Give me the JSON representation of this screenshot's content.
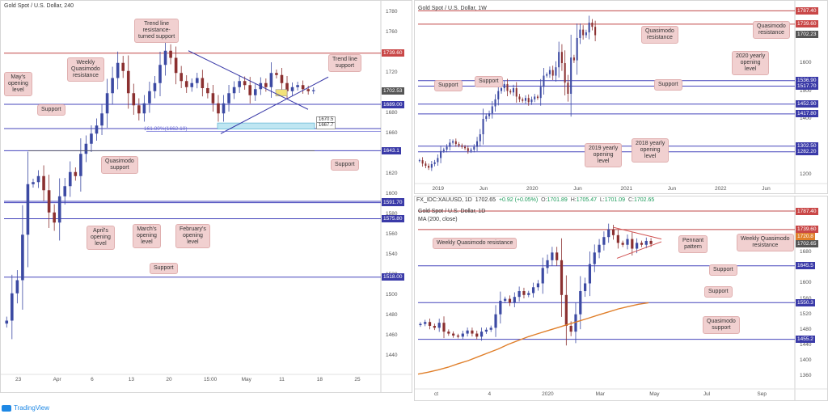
{
  "colors": {
    "candle_up": "#3c4aa3",
    "candle_down": "#8b3030",
    "level_blue": "#4444bb",
    "level_red": "#c04848",
    "annotation_bg": "#f1d0d0",
    "tag_red": "#c94747",
    "tag_blue": "#3a3aa8",
    "ma200": "#e07f2a",
    "fib": "#6b6bd6"
  },
  "footer": {
    "brand": "TradingView"
  },
  "chart_data": [
    {
      "id": "h4",
      "type": "candlestick",
      "title": "Gold Spot / U.S. Dollar, 240",
      "ylim": [
        1425,
        1785
      ],
      "yticks": [
        1440,
        1460,
        1480,
        1500,
        1520,
        1540,
        1560,
        1580,
        1600,
        1620,
        1640,
        1660,
        1680,
        1700,
        1720,
        1740,
        1760,
        1780
      ],
      "xticks": [
        "23",
        "Apr",
        "6",
        "13",
        "20",
        "15:00",
        "May",
        "11",
        "18",
        "25"
      ],
      "close_series": [
        1475,
        1502,
        1515,
        1560,
        1610,
        1612,
        1618,
        1604,
        1582,
        1572,
        1598,
        1608,
        1622,
        1618,
        1640,
        1650,
        1660,
        1668,
        1680,
        1700,
        1715,
        1730,
        1722,
        1700,
        1688,
        1680,
        1690,
        1702,
        1710,
        1728,
        1742,
        1735,
        1720,
        1712,
        1706,
        1710,
        1715,
        1705,
        1700,
        1690,
        1680,
        1690,
        1700,
        1706,
        1712,
        1708,
        1698,
        1704,
        1710,
        1706,
        1720,
        1718,
        1710,
        1702,
        1706,
        1708,
        1704,
        1702,
        1703
      ],
      "levels": [
        {
          "price": 1739.6,
          "label": "1739.60",
          "kind": "resistance"
        },
        {
          "price": 1702.53,
          "label": "1702.53",
          "kind": "current"
        },
        {
          "price": 1689.0,
          "label": "1689.00",
          "kind": "support"
        },
        {
          "price": 1665.0,
          "label": "",
          "kind": "support"
        },
        {
          "price": 1643.1,
          "label": "1643.1",
          "kind": "support"
        },
        {
          "price": 1593.0,
          "label": "1593.00",
          "kind": "support"
        },
        {
          "price": 1591.7,
          "label": "1591.70",
          "kind": "support"
        },
        {
          "price": 1575.8,
          "label": "1575.80",
          "kind": "support"
        },
        {
          "price": 1518.0,
          "label": "1518.00",
          "kind": "support"
        }
      ],
      "zone": {
        "top": 1670.5,
        "bottom": 1667.7,
        "top_label": "1670.5",
        "bottom_label": "1667.7"
      },
      "fib_label": "161.80%(1662.10)",
      "annotations": [
        {
          "text": "Trend line\nresistance-\nturned support"
        },
        {
          "text": "Weekly\nQuasimodo\nresistance"
        },
        {
          "text": "Trend line\nsupport"
        },
        {
          "text": "May's\nopening\nlevel"
        },
        {
          "text": "Support"
        },
        {
          "text": "Quasimodo\nsupport"
        },
        {
          "text": "Support"
        },
        {
          "text": "April's\nopening\nlevel"
        },
        {
          "text": "March's\nopening\nlevel"
        },
        {
          "text": "February's\nopening\nlevel"
        },
        {
          "text": "Support"
        }
      ]
    },
    {
      "id": "weekly",
      "type": "candlestick",
      "title": "Gold Spot / U.S. Dollar, 1W",
      "ylim": [
        1180,
        1800
      ],
      "yticks": [
        1200,
        1300,
        1400,
        1500,
        1600,
        1700
      ],
      "xticks": [
        "2019",
        "Jun",
        "2020",
        "Jun",
        "2021",
        "Jun",
        "2022",
        "Jun"
      ],
      "close_series": [
        1252,
        1240,
        1232,
        1225,
        1238,
        1245,
        1260,
        1285,
        1290,
        1300,
        1315,
        1320,
        1310,
        1305,
        1300,
        1295,
        1285,
        1290,
        1300,
        1320,
        1345,
        1400,
        1410,
        1420,
        1445,
        1470,
        1500,
        1510,
        1525,
        1500,
        1495,
        1510,
        1480,
        1470,
        1465,
        1475,
        1460,
        1470,
        1480,
        1475,
        1515,
        1555,
        1560,
        1575,
        1555,
        1585,
        1640,
        1600,
        1530,
        1490,
        1620,
        1610,
        1690,
        1720,
        1700,
        1710,
        1745,
        1730,
        1700
      ],
      "levels": [
        {
          "price": 1787.4,
          "label": "1787.40",
          "kind": "resistance"
        },
        {
          "price": 1739.6,
          "label": "1739.60",
          "kind": "resistance"
        },
        {
          "price": 1702.23,
          "label": "1702.23",
          "kind": "current"
        },
        {
          "price": 1536.9,
          "label": "1536.90",
          "kind": "support"
        },
        {
          "price": 1517.7,
          "label": "1517.70",
          "kind": "support"
        },
        {
          "price": 1452.9,
          "label": "1452.90",
          "kind": "support"
        },
        {
          "price": 1417.8,
          "label": "1417.80",
          "kind": "support"
        },
        {
          "price": 1302.5,
          "label": "1302.50",
          "kind": "support"
        },
        {
          "price": 1282.2,
          "label": "1282.20",
          "kind": "support"
        }
      ],
      "annotations": [
        {
          "text": "Quasimodo\nresistance"
        },
        {
          "text": "Quasimodo\nresistance"
        },
        {
          "text": "2020 yearly\nopening\nlevel"
        },
        {
          "text": "Support"
        },
        {
          "text": "Support"
        },
        {
          "text": "Support"
        },
        {
          "text": "2019 yearly\nopening\nlevel"
        },
        {
          "text": "2018 yearly\nopening\nlevel"
        }
      ]
    },
    {
      "id": "daily",
      "type": "candlestick",
      "title": "Gold Spot / U.S. Dollar, 1D",
      "indicator": "MA (200, close)",
      "symbol": "FX_IDC:XAUUSD, 1D",
      "ohlc": {
        "price": "1702.65",
        "change": "+0.92 (+0.05%)",
        "o": "1701.89",
        "h": "1705.47",
        "l": "1701.09",
        "c": "1702.65"
      },
      "ylim": [
        1335,
        1800
      ],
      "yticks": [
        1360,
        1400,
        1440,
        1480,
        1520,
        1560,
        1600,
        1640,
        1680,
        1720
      ],
      "xticks": [
        "ct",
        "4",
        "2020",
        "Mar",
        "May",
        "Jul",
        "Sep"
      ],
      "close_series": [
        1495,
        1500,
        1490,
        1485,
        1498,
        1475,
        1470,
        1465,
        1462,
        1470,
        1478,
        1470,
        1462,
        1475,
        1480,
        1485,
        1520,
        1555,
        1560,
        1550,
        1565,
        1580,
        1570,
        1575,
        1590,
        1600,
        1640,
        1660,
        1680,
        1660,
        1570,
        1490,
        1475,
        1520,
        1580,
        1600,
        1650,
        1680,
        1700,
        1720,
        1740,
        1725,
        1705,
        1700,
        1715,
        1690,
        1705,
        1700,
        1710,
        1702
      ],
      "ma_series": [
        1365,
        1370,
        1376,
        1383,
        1392,
        1400,
        1410,
        1420,
        1430,
        1442,
        1452,
        1462,
        1470,
        1478,
        1486,
        1494,
        1502,
        1510,
        1518,
        1526,
        1534,
        1540,
        1546,
        1550
      ],
      "levels": [
        {
          "price": 1787.4,
          "label": "1787.40",
          "kind": "resistance"
        },
        {
          "price": 1739.6,
          "label": "1739.60",
          "kind": "resistance"
        },
        {
          "price": 1720.8,
          "label": "1720.8",
          "kind": "ma"
        },
        {
          "price": 1702.65,
          "label": "1702.65",
          "kind": "current"
        },
        {
          "price": 1645.5,
          "label": "1645.5",
          "kind": "support"
        },
        {
          "price": 1550.3,
          "label": "1550.3",
          "kind": "support"
        },
        {
          "price": 1455.2,
          "label": "1455.2",
          "kind": "support"
        }
      ],
      "annotations": [
        {
          "text": "Weekly Quasimodo resistance"
        },
        {
          "text": "Pennant\npattern"
        },
        {
          "text": "Weekly Quasimodo\nresistance"
        },
        {
          "text": "Support"
        },
        {
          "text": "Support"
        },
        {
          "text": "Quasimodo\nsupport"
        }
      ]
    }
  ]
}
